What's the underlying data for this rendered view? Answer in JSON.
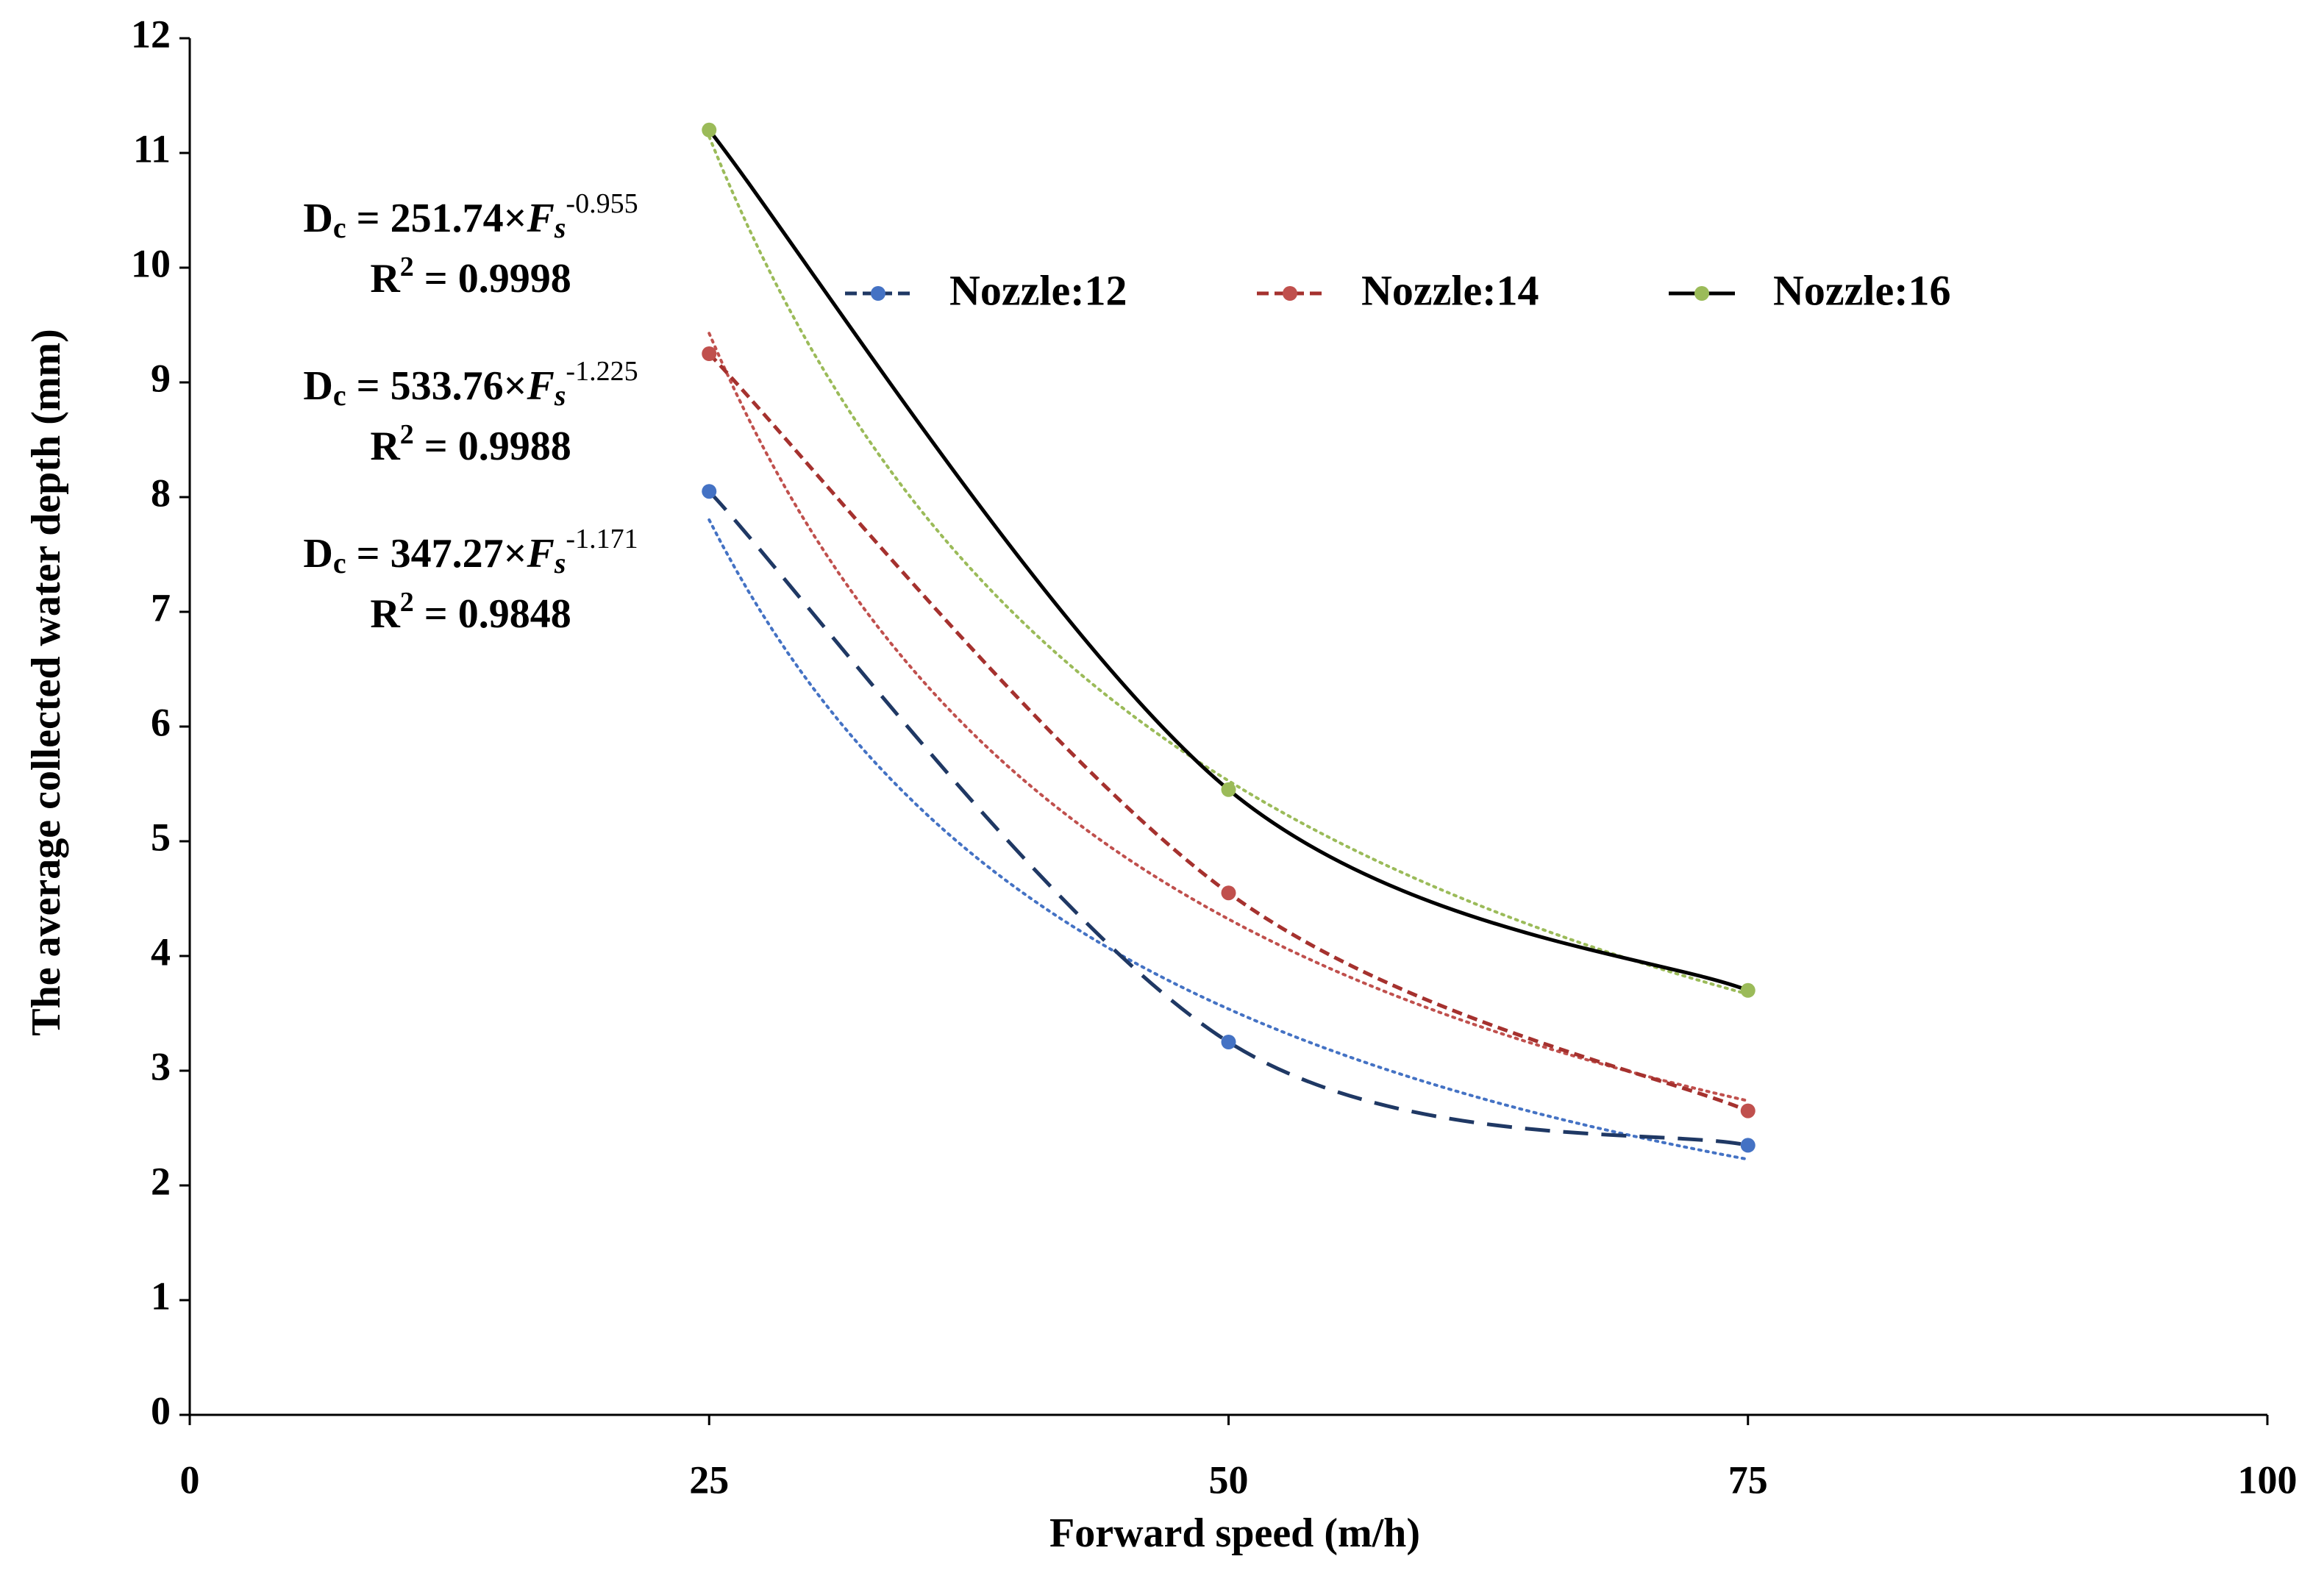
{
  "chart_data": {
    "type": "line",
    "x_label": "Forward speed (m/h)",
    "y_label": "The average collected water depth (mm)",
    "x": [
      25,
      50,
      75
    ],
    "xlim": [
      0,
      100
    ],
    "xticks": [
      0,
      25,
      50,
      75,
      100
    ],
    "ylim": [
      0,
      12
    ],
    "yticks": [
      0,
      1,
      2,
      3,
      4,
      5,
      6,
      7,
      8,
      9,
      10,
      11,
      12
    ],
    "grid": false,
    "legend": "top",
    "trend_label": {
      "lhs": "D",
      "lhs_sub": "c",
      "eq": " = ",
      "times": "×",
      "var": "F",
      "var_sub": "s",
      "r": "R",
      "r_sup": "2"
    },
    "series": [
      {
        "name": "Nozzle:12",
        "color": "#4472c4",
        "line_color": "#1f3864",
        "dash": "34 18",
        "trendline": "power",
        "values": [
          8.05,
          3.25,
          2.35
        ],
        "equation": {
          "coefficient": 347.27,
          "exponent": -1.171,
          "r2": 0.9848
        }
      },
      {
        "name": "Nozzle:14",
        "color": "#c0504d",
        "line_color": "#a5312e",
        "dash": "14 8",
        "trendline": "power",
        "values": [
          9.25,
          4.55,
          2.65
        ],
        "equation": {
          "coefficient": 533.76,
          "exponent": -1.225,
          "r2": 0.9988
        }
      },
      {
        "name": "Nozzle:16",
        "color": "#9bbb59",
        "line_color": "#000000",
        "dash": "none",
        "trendline": "power",
        "values": [
          11.2,
          5.45,
          3.7
        ],
        "equation": {
          "coefficient": 251.74,
          "exponent": -0.955,
          "r2": 0.9998
        }
      }
    ]
  }
}
